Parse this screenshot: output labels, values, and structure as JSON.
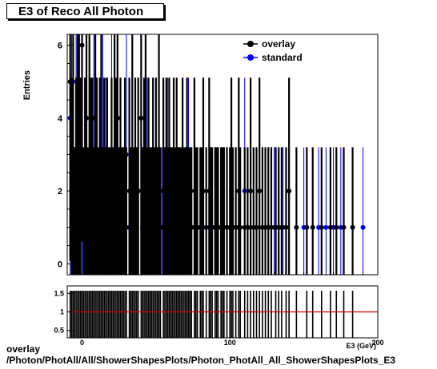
{
  "title": "E3 of Reco All Photon",
  "footer": {
    "line1": "overlay",
    "line2": "/Photon/PhotAll/All/ShowerShapesPlots/Photon_PhotAll_All_ShowerShapesPlots_E3"
  },
  "colors": {
    "overlay": "#000000",
    "standard": "#0000ff",
    "ratio_line": "#cc0000"
  },
  "chart_data": [
    {
      "type": "scatter",
      "ylabel": "Entries",
      "xlabel": "E3 (GeV)",
      "xlim": [
        -10,
        200
      ],
      "ylim": [
        -0.3,
        6.3
      ],
      "yticks": [
        0,
        2,
        4,
        6
      ],
      "xticks": [
        0,
        100,
        200
      ],
      "legend": {
        "position": "top-right",
        "entries": [
          "overlay",
          "standard"
        ]
      },
      "series": [
        {
          "name": "overlay",
          "points": [
            [
              -8,
              5
            ],
            [
              -7,
              2
            ],
            [
              -6,
              3
            ],
            [
              -5,
              1
            ],
            [
              -4,
              2
            ],
            [
              -3,
              4
            ],
            [
              -2,
              3
            ],
            [
              -1,
              2
            ],
            [
              0,
              6
            ],
            [
              1,
              1
            ],
            [
              2,
              2
            ],
            [
              3,
              4
            ],
            [
              4,
              1
            ],
            [
              5,
              3
            ],
            [
              6,
              2
            ],
            [
              7,
              2
            ],
            [
              8,
              1
            ],
            [
              9,
              4
            ],
            [
              10,
              2
            ],
            [
              11,
              1
            ],
            [
              12,
              2
            ],
            [
              13,
              3
            ],
            [
              14,
              1
            ],
            [
              15,
              2
            ],
            [
              16,
              1
            ],
            [
              17,
              2
            ],
            [
              18,
              1
            ],
            [
              19,
              1
            ],
            [
              20,
              2
            ],
            [
              21,
              1
            ],
            [
              22,
              3
            ],
            [
              23,
              2
            ],
            [
              24,
              4
            ],
            [
              25,
              1
            ],
            [
              26,
              2
            ],
            [
              27,
              1
            ],
            [
              28,
              1
            ],
            [
              29,
              2
            ],
            [
              30,
              1
            ],
            [
              32,
              2
            ],
            [
              33,
              1
            ],
            [
              34,
              3
            ],
            [
              35,
              1
            ],
            [
              36,
              2
            ],
            [
              37,
              1
            ],
            [
              38,
              2
            ],
            [
              40,
              4
            ],
            [
              41,
              1
            ],
            [
              42,
              2
            ],
            [
              43,
              3
            ],
            [
              44,
              1
            ],
            [
              45,
              2
            ],
            [
              46,
              1
            ],
            [
              47,
              1
            ],
            [
              48,
              2
            ],
            [
              49,
              1
            ],
            [
              50,
              2
            ],
            [
              51,
              1
            ],
            [
              52,
              3
            ],
            [
              53,
              1
            ],
            [
              55,
              2
            ],
            [
              56,
              1
            ],
            [
              57,
              2
            ],
            [
              58,
              1
            ],
            [
              59,
              2
            ],
            [
              60,
              1
            ],
            [
              61,
              1
            ],
            [
              62,
              2
            ],
            [
              63,
              1
            ],
            [
              64,
              2
            ],
            [
              65,
              1
            ],
            [
              66,
              1
            ],
            [
              67,
              1
            ],
            [
              68,
              2
            ],
            [
              69,
              1
            ],
            [
              70,
              1
            ],
            [
              71,
              2
            ],
            [
              72,
              1
            ],
            [
              73,
              1
            ],
            [
              74,
              1
            ],
            [
              76,
              2
            ],
            [
              77,
              1
            ],
            [
              78,
              1
            ],
            [
              80,
              1
            ],
            [
              81,
              1
            ],
            [
              82,
              2
            ],
            [
              84,
              1
            ],
            [
              86,
              2
            ],
            [
              87,
              1
            ],
            [
              88,
              1
            ],
            [
              90,
              1
            ],
            [
              91,
              1
            ],
            [
              92,
              1
            ],
            [
              94,
              1
            ],
            [
              95,
              1
            ],
            [
              96,
              1
            ],
            [
              98,
              1
            ],
            [
              100,
              1
            ],
            [
              101,
              2
            ],
            [
              102,
              1
            ],
            [
              104,
              1
            ],
            [
              106,
              2
            ],
            [
              107,
              1
            ],
            [
              110,
              1
            ],
            [
              112,
              1
            ],
            [
              114,
              2
            ],
            [
              116,
              1
            ],
            [
              118,
              1
            ],
            [
              120,
              2
            ],
            [
              122,
              1
            ],
            [
              124,
              1
            ],
            [
              126,
              1
            ],
            [
              128,
              1
            ],
            [
              131,
              1
            ],
            [
              133,
              1
            ],
            [
              135,
              1
            ],
            [
              138,
              1
            ],
            [
              140,
              2
            ],
            [
              145,
              1
            ],
            [
              152,
              1
            ],
            [
              156,
              1
            ],
            [
              162,
              1
            ],
            [
              168,
              1
            ],
            [
              172,
              1
            ],
            [
              177,
              1
            ],
            [
              183,
              1
            ]
          ]
        },
        {
          "name": "standard",
          "points": [
            [
              -8,
              4
            ],
            [
              -7,
              3
            ],
            [
              -6,
              5
            ],
            [
              -5,
              1
            ],
            [
              -4,
              3
            ],
            [
              -3,
              2
            ],
            [
              -2,
              4
            ],
            [
              -1,
              1
            ],
            [
              0,
              2
            ],
            [
              2,
              1
            ],
            [
              3,
              3
            ],
            [
              5,
              2
            ],
            [
              7,
              1
            ],
            [
              8,
              4
            ],
            [
              10,
              2
            ],
            [
              12,
              1
            ],
            [
              14,
              3
            ],
            [
              16,
              2
            ],
            [
              18,
              1
            ],
            [
              20,
              3
            ],
            [
              22,
              1
            ],
            [
              24,
              4
            ],
            [
              26,
              2
            ],
            [
              28,
              1
            ],
            [
              30,
              3
            ],
            [
              32,
              1
            ],
            [
              34,
              2
            ],
            [
              36,
              1
            ],
            [
              38,
              2
            ],
            [
              40,
              4
            ],
            [
              42,
              1
            ],
            [
              44,
              2
            ],
            [
              46,
              1
            ],
            [
              48,
              2
            ],
            [
              50,
              1
            ],
            [
              52,
              2
            ],
            [
              54,
              1
            ],
            [
              56,
              1
            ],
            [
              58,
              2
            ],
            [
              60,
              1
            ],
            [
              62,
              1
            ],
            [
              64,
              2
            ],
            [
              66,
              1
            ],
            [
              68,
              1
            ],
            [
              70,
              1
            ],
            [
              72,
              2
            ],
            [
              74,
              1
            ],
            [
              76,
              1
            ],
            [
              78,
              1
            ],
            [
              80,
              1
            ],
            [
              82,
              1
            ],
            [
              84,
              1
            ],
            [
              86,
              1
            ],
            [
              88,
              1
            ],
            [
              90,
              1
            ],
            [
              92,
              1
            ],
            [
              94,
              1
            ],
            [
              96,
              1
            ],
            [
              98,
              1
            ],
            [
              101,
              2
            ],
            [
              104,
              1
            ],
            [
              106,
              1
            ],
            [
              110,
              2
            ],
            [
              114,
              1
            ],
            [
              118,
              1
            ],
            [
              122,
              1
            ],
            [
              126,
              1
            ],
            [
              130,
              1
            ],
            [
              136,
              1
            ],
            [
              150,
              1
            ],
            [
              160,
              1
            ],
            [
              165,
              1
            ],
            [
              170,
              1
            ],
            [
              175,
              1
            ],
            [
              190,
              1
            ]
          ]
        }
      ]
    },
    {
      "type": "line",
      "xlim": [
        -10,
        200
      ],
      "ylim": [
        0.3,
        1.7
      ],
      "yticks": [
        0.5,
        1,
        1.5
      ],
      "xticks": [
        0,
        100,
        200
      ],
      "reference_line": 1.0
    }
  ]
}
